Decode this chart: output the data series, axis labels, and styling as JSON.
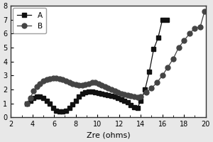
{
  "title": "",
  "xlabel": "Zre (ohms)",
  "ylabel": "",
  "xlim": [
    2,
    20
  ],
  "ylim": [
    0,
    8
  ],
  "xticks": [
    2,
    4,
    6,
    8,
    10,
    12,
    14,
    16,
    18,
    20
  ],
  "yticks": [
    0,
    1,
    2,
    3,
    4,
    5,
    6,
    7,
    8
  ],
  "series_A": {
    "x": [
      3.5,
      3.8,
      4.1,
      4.4,
      4.7,
      5.0,
      5.3,
      5.6,
      5.9,
      6.2,
      6.5,
      6.8,
      7.1,
      7.4,
      7.7,
      8.0,
      8.3,
      8.6,
      8.9,
      9.2,
      9.5,
      9.8,
      10.1,
      10.4,
      10.7,
      11.0,
      11.3,
      11.6,
      11.9,
      12.2,
      12.5,
      12.8,
      13.1,
      13.4,
      13.7,
      14.0,
      14.4,
      14.8,
      15.2,
      15.6,
      16.0,
      16.4
    ],
    "y": [
      1.0,
      1.2,
      1.4,
      1.5,
      1.5,
      1.4,
      1.2,
      1.0,
      0.7,
      0.5,
      0.45,
      0.45,
      0.5,
      0.7,
      0.95,
      1.2,
      1.5,
      1.7,
      1.8,
      1.85,
      1.85,
      1.8,
      1.75,
      1.7,
      1.65,
      1.6,
      1.55,
      1.5,
      1.4,
      1.3,
      1.2,
      1.1,
      0.9,
      0.75,
      0.7,
      1.2,
      2.0,
      3.3,
      4.9,
      5.7,
      7.0,
      7.0
    ],
    "marker": "s",
    "color": "#111111",
    "label": "A",
    "markersize": 4
  },
  "series_B": {
    "x": [
      3.5,
      3.8,
      4.1,
      4.4,
      4.7,
      5.0,
      5.3,
      5.6,
      5.9,
      6.2,
      6.5,
      6.8,
      7.1,
      7.4,
      7.7,
      8.0,
      8.3,
      8.6,
      8.9,
      9.2,
      9.5,
      9.8,
      10.1,
      10.4,
      10.7,
      11.0,
      11.3,
      11.6,
      11.9,
      12.2,
      12.5,
      12.8,
      13.1,
      13.4,
      13.7,
      14.0,
      14.5,
      15.0,
      15.5,
      16.0,
      16.5,
      17.0,
      17.5,
      18.0,
      18.5,
      19.0,
      19.5,
      19.9
    ],
    "y": [
      1.0,
      1.4,
      1.9,
      2.2,
      2.4,
      2.6,
      2.7,
      2.75,
      2.8,
      2.8,
      2.75,
      2.7,
      2.6,
      2.5,
      2.4,
      2.35,
      2.3,
      2.3,
      2.35,
      2.4,
      2.5,
      2.5,
      2.4,
      2.3,
      2.2,
      2.1,
      2.0,
      1.9,
      1.8,
      1.7,
      1.65,
      1.6,
      1.55,
      1.5,
      1.45,
      1.5,
      1.8,
      2.1,
      2.5,
      3.0,
      3.6,
      4.2,
      5.0,
      5.5,
      6.0,
      6.4,
      6.5,
      7.6
    ],
    "marker": "o",
    "color": "#444444",
    "label": "B",
    "markersize": 5
  },
  "legend_loc": "upper left",
  "background_color": "#ffffff",
  "fig_bg": "#e8e8e8"
}
